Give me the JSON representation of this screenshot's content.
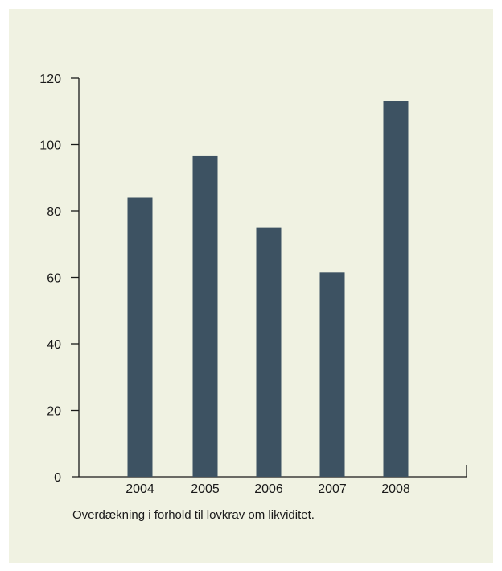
{
  "colors": {
    "background": "#f0f2e2",
    "bar": "#3d5262",
    "axis": "#1a1a1a"
  },
  "caption": "Overdækning i forhold til lovkrav om likviditet.",
  "chart_data": {
    "type": "bar",
    "categories": [
      "2004",
      "2005",
      "2006",
      "2007",
      "2008"
    ],
    "values": [
      84,
      96.5,
      75,
      61.5,
      113
    ],
    "title": "",
    "xlabel": "",
    "ylabel": "",
    "ylim": [
      0,
      120
    ],
    "yticks": [
      "0",
      "20",
      "40",
      "60",
      "80",
      "100",
      "120"
    ],
    "grid": false,
    "legend": "none"
  }
}
